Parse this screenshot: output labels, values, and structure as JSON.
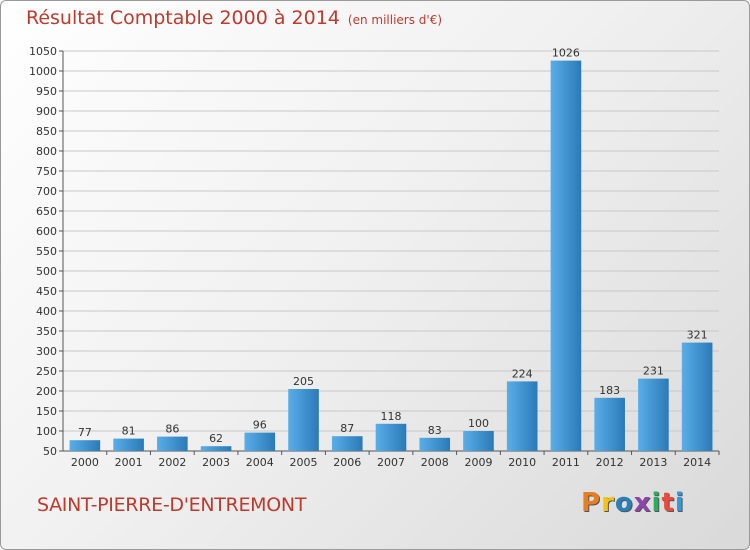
{
  "header": {
    "title": "Résultat Comptable 2000 à 2014",
    "subtitle": "(en milliers d'€)"
  },
  "footer": {
    "place": "SAINT-PIERRE-D'ENTREMONT",
    "logo": "Proxiti"
  },
  "colors": {
    "title": "#c0392b",
    "bar_light": "#5aaee8",
    "bar_dark": "#2a7ab8",
    "grid": "#c8c8c8",
    "logo_letters": [
      "#e67e22",
      "#f1c40f",
      "#2980b9",
      "#8e44ad",
      "#27ae60",
      "#e74c3c",
      "#3498db"
    ]
  },
  "chart_data": {
    "type": "bar",
    "title": "Résultat Comptable 2000 à 2014",
    "subtitle": "(en milliers d'€)",
    "xlabel": "",
    "ylabel": "",
    "categories": [
      "2000",
      "2001",
      "2002",
      "2003",
      "2004",
      "2005",
      "2006",
      "2007",
      "2008",
      "2009",
      "2010",
      "2011",
      "2012",
      "2013",
      "2014"
    ],
    "values": [
      77,
      81,
      86,
      62,
      96,
      205,
      87,
      118,
      83,
      100,
      224,
      1026,
      183,
      231,
      321
    ],
    "ylim": [
      50,
      1050
    ],
    "yticks": [
      50,
      100,
      150,
      200,
      250,
      300,
      350,
      400,
      450,
      500,
      550,
      600,
      650,
      700,
      750,
      800,
      850,
      900,
      950,
      1000,
      1050
    ],
    "grid": true,
    "legend": "none"
  }
}
